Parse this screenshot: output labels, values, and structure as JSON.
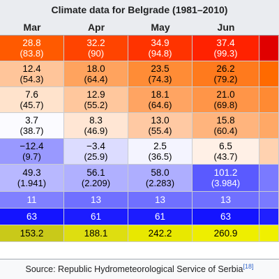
{
  "table": {
    "title": "Climate data for Belgrade (1981–2010)",
    "months": [
      "Mar",
      "Apr",
      "May",
      "Jun"
    ],
    "rows": [
      {
        "name": "record-high",
        "height": 37,
        "cells": [
          {
            "main": "28.8",
            "sub": "(83.8)",
            "bg": "#ff5a00",
            "fg": "#ffffff"
          },
          {
            "main": "32.2",
            "sub": "(90)",
            "bg": "#ff4400",
            "fg": "#ffffff"
          },
          {
            "main": "34.9",
            "sub": "(94.8)",
            "bg": "#ff3300",
            "fg": "#ffffff"
          },
          {
            "main": "37.4",
            "sub": "(99.3)",
            "bg": "#ff2200",
            "fg": "#ffffff"
          }
        ],
        "edge_bg": "#e00000"
      },
      {
        "name": "average-high",
        "height": 37,
        "cells": [
          {
            "main": "12.4",
            "sub": "(54.3)",
            "bg": "#ffc59a",
            "fg": "#000000"
          },
          {
            "main": "18.0",
            "sub": "(64.4)",
            "bg": "#ffa35e",
            "fg": "#000000"
          },
          {
            "main": "23.5",
            "sub": "(74.3)",
            "bg": "#ff8c36",
            "fg": "#000000"
          },
          {
            "main": "26.2",
            "sub": "(79.2)",
            "bg": "#ff7a1d",
            "fg": "#000000"
          }
        ],
        "edge_bg": "#ff6a00"
      },
      {
        "name": "daily-mean",
        "height": 37,
        "cells": [
          {
            "main": "7.6",
            "sub": "(45.7)",
            "bg": "#ffe3cc",
            "fg": "#000000"
          },
          {
            "main": "12.9",
            "sub": "(55.2)",
            "bg": "#ffc79d",
            "fg": "#000000"
          },
          {
            "main": "18.1",
            "sub": "(64.6)",
            "bg": "#ffa462",
            "fg": "#000000"
          },
          {
            "main": "21.0",
            "sub": "(69.8)",
            "bg": "#ff9548",
            "fg": "#000000"
          }
        ],
        "edge_bg": "#ff8a33"
      },
      {
        "name": "average-low",
        "height": 37,
        "cells": [
          {
            "main": "3.7",
            "sub": "(38.7)",
            "bg": "#fbfbff",
            "fg": "#000000"
          },
          {
            "main": "8.3",
            "sub": "(46.9)",
            "bg": "#ffe6d4",
            "fg": "#000000"
          },
          {
            "main": "13.0",
            "sub": "(55.4)",
            "bg": "#ffc9a3",
            "fg": "#000000"
          },
          {
            "main": "15.8",
            "sub": "(60.4)",
            "bg": "#ffb47d",
            "fg": "#000000"
          }
        ],
        "edge_bg": "#ffa866"
      },
      {
        "name": "record-low",
        "height": 37,
        "cells": [
          {
            "main": "−12.4",
            "sub": "(9.7)",
            "bg": "#9999ff",
            "fg": "#000000"
          },
          {
            "main": "−3.4",
            "sub": "(25.9)",
            "bg": "#dcdcff",
            "fg": "#000000"
          },
          {
            "main": "2.5",
            "sub": "(36.5)",
            "bg": "#f4f4ff",
            "fg": "#000000"
          },
          {
            "main": "6.5",
            "sub": "(43.7)",
            "bg": "#fff0e6",
            "fg": "#000000"
          }
        ],
        "edge_bg": "#ffd2b0"
      },
      {
        "name": "precipitation",
        "height": 39,
        "cells": [
          {
            "main": "49.3",
            "sub": "(1.941)",
            "bg": "#b8b8ff",
            "fg": "#000000"
          },
          {
            "main": "56.1",
            "sub": "(2.209)",
            "bg": "#b0b0ff",
            "fg": "#000000"
          },
          {
            "main": "58.0",
            "sub": "(2.283)",
            "bg": "#aeaeff",
            "fg": "#000000"
          },
          {
            "main": "101.2",
            "sub": "(3.984)",
            "bg": "#5a5aff",
            "fg": "#ffffff"
          }
        ],
        "edge_bg": "#7a7aff"
      },
      {
        "name": "precipitation-days",
        "height": 24,
        "cells": [
          {
            "main": "11",
            "bg": "#8080ff",
            "fg": "#ffffff"
          },
          {
            "main": "13",
            "bg": "#7070ff",
            "fg": "#ffffff"
          },
          {
            "main": "13",
            "bg": "#7070ff",
            "fg": "#ffffff"
          },
          {
            "main": "13",
            "bg": "#7070ff",
            "fg": "#ffffff"
          }
        ],
        "edge_bg": "#7a7aff"
      },
      {
        "name": "humidity",
        "height": 24,
        "cells": [
          {
            "main": "63",
            "bg": "#1414ff",
            "fg": "#ffffff"
          },
          {
            "main": "61",
            "bg": "#1c1cff",
            "fg": "#ffffff"
          },
          {
            "main": "61",
            "bg": "#1c1cff",
            "fg": "#ffffff"
          },
          {
            "main": "63",
            "bg": "#1414ff",
            "fg": "#ffffff"
          }
        ],
        "edge_bg": "#2020ff"
      },
      {
        "name": "sunshine-hours",
        "height": 24,
        "cells": [
          {
            "main": "153.2",
            "bg": "#c9c919",
            "fg": "#000000"
          },
          {
            "main": "188.1",
            "bg": "#dede10",
            "fg": "#000000"
          },
          {
            "main": "242.2",
            "bg": "#e8e800",
            "fg": "#000000"
          },
          {
            "main": "260.9",
            "bg": "#eeee00",
            "fg": "#000000"
          }
        ],
        "edge_bg": "#f0f000"
      }
    ],
    "source_text": "Source: Republic Hydrometeorological Service of Serbia",
    "source_ref": "[18]"
  }
}
